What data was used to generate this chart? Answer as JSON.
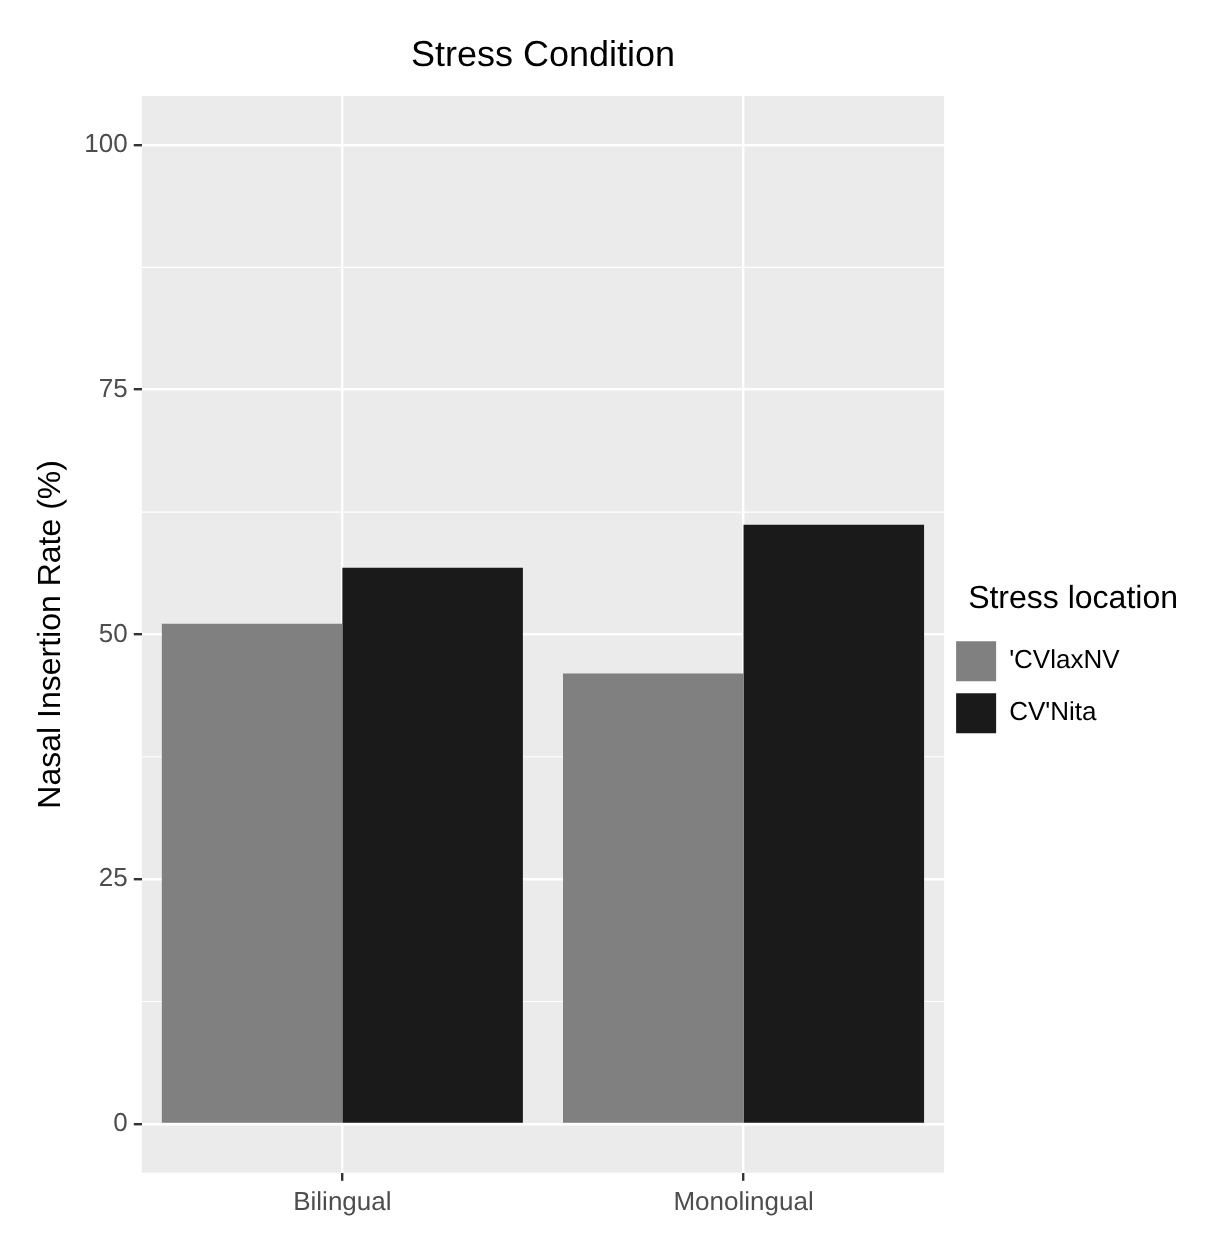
{
  "chart_data": {
    "type": "bar",
    "title": "Stress Condition",
    "ylabel": "Nasal Insertion Rate (%)",
    "legend_title": "Stress location",
    "categories": [
      "Bilingual",
      "Monolingual"
    ],
    "series": [
      {
        "name": "'CVlaxNV",
        "color": "#808080",
        "values": [
          51.1,
          46.0
        ]
      },
      {
        "name": "CV'Nita",
        "color": "#1a1a1a",
        "values": [
          56.8,
          61.2
        ]
      }
    ],
    "ylim": [
      -5,
      105
    ],
    "yticks": [
      0,
      25,
      50,
      75,
      100
    ],
    "grid": true,
    "legend": "right"
  }
}
